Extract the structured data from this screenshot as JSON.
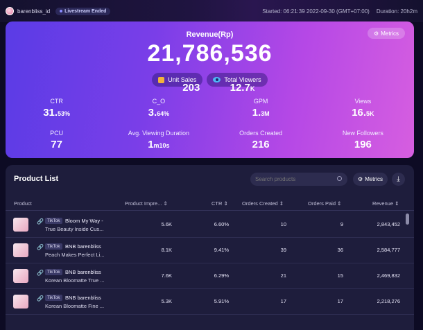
{
  "topbar": {
    "shop_name": "barenbliss_id",
    "live_status": "Livestream Ended",
    "started": "Started: 06:21:39 2022-09-30 (GMT+07:00)",
    "duration": "Duration: 20h2m"
  },
  "hero": {
    "metrics_button": "Metrics",
    "revenue_label": "Revenue(Rp)",
    "revenue_value": "21,786,536",
    "unit_sales_label": "Unit Sales",
    "unit_sales_value": "203",
    "total_viewers_label": "Total Viewers",
    "total_viewers_value": "12.7",
    "total_viewers_suffix": "K",
    "stats": [
      {
        "label": "CTR",
        "value": "31.",
        "suffix": "53%"
      },
      {
        "label": "C_O",
        "value": "3.",
        "suffix": "64%"
      },
      {
        "label": "GPM",
        "value": "1.",
        "suffix": "3M"
      },
      {
        "label": "Views",
        "value": "16.",
        "suffix": "5K"
      },
      {
        "label": "PCU",
        "value": "77",
        "suffix": ""
      },
      {
        "label": "Avg. Viewing Duration",
        "value": "1",
        "suffix": "m10s"
      },
      {
        "label": "Orders Created",
        "value": "216",
        "suffix": ""
      },
      {
        "label": "New Followers",
        "value": "196",
        "suffix": ""
      }
    ]
  },
  "products": {
    "title": "Product List",
    "search_placeholder": "Search products",
    "metrics_button": "Metrics",
    "headers": {
      "product": "Product",
      "impressions": "Product Impre...",
      "ctr": "CTR",
      "orders_created": "Orders Created",
      "orders_paid": "Orders Paid",
      "revenue": "Revenue"
    },
    "rows": [
      {
        "badge": "TikTok",
        "name1": "Bloom My Way -",
        "name2": "True Beauty Inside Cus...",
        "impressions": "5.6K",
        "ctr": "6.60%",
        "orders_created": "10",
        "orders_paid": "9",
        "revenue": "2,843,452"
      },
      {
        "badge": "TikTok",
        "name1": "BNB barenbliss",
        "name2": "Peach Makes Perfect Li...",
        "impressions": "8.1K",
        "ctr": "9.41%",
        "orders_created": "39",
        "orders_paid": "36",
        "revenue": "2,584,777"
      },
      {
        "badge": "TikTok",
        "name1": "BNB barenbliss",
        "name2": "Korean Bloomatte True ...",
        "impressions": "7.6K",
        "ctr": "6.29%",
        "orders_created": "21",
        "orders_paid": "15",
        "revenue": "2,469,832"
      },
      {
        "badge": "TikTok",
        "name1": "BNB barenbliss",
        "name2": "Korean Bloomatte Fine ...",
        "impressions": "5.3K",
        "ctr": "5.91%",
        "orders_created": "17",
        "orders_paid": "17",
        "revenue": "2,218,276"
      }
    ]
  }
}
